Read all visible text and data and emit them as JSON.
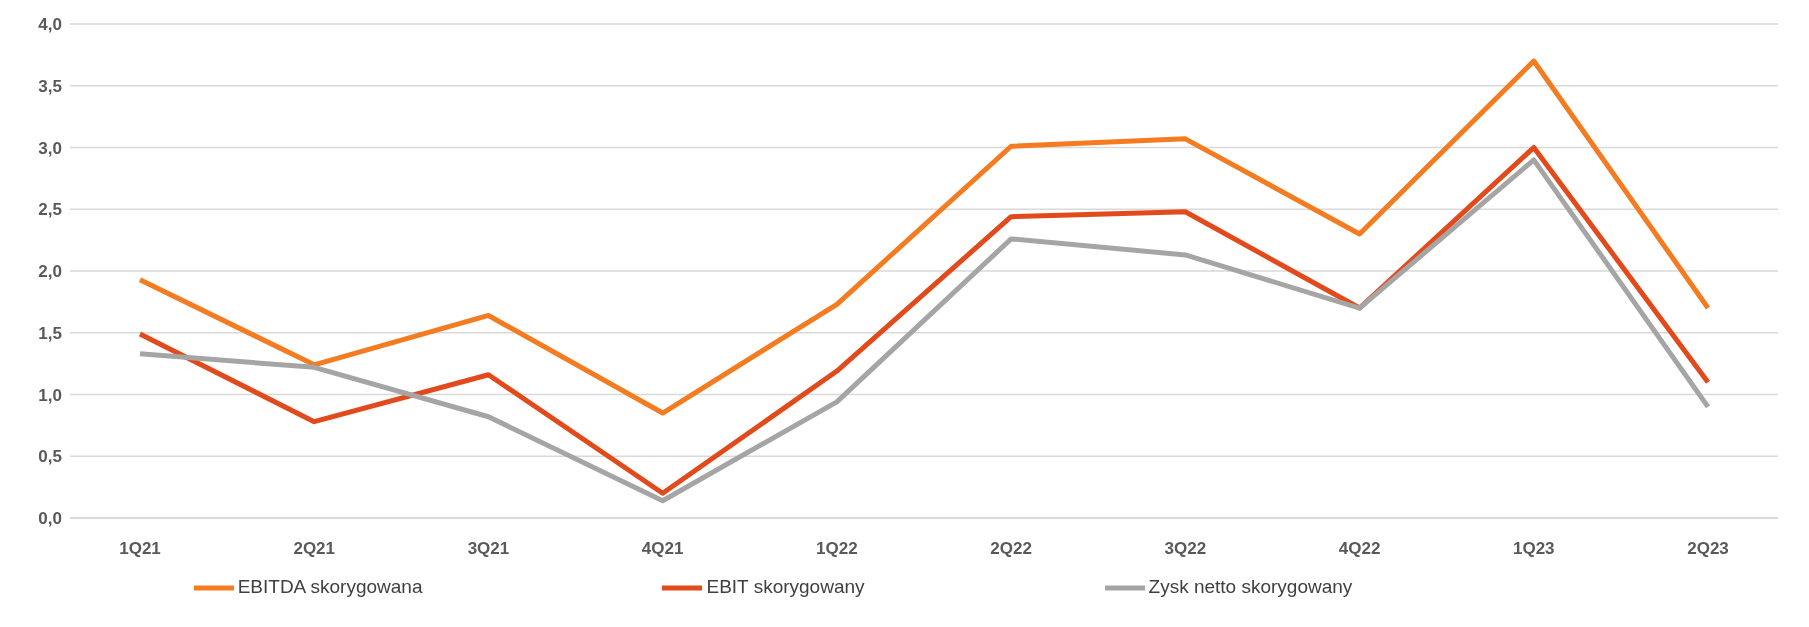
{
  "chart_data": {
    "type": "line",
    "categories": [
      "1Q21",
      "2Q21",
      "3Q21",
      "4Q21",
      "1Q22",
      "2Q22",
      "3Q22",
      "4Q22",
      "1Q23",
      "2Q23"
    ],
    "series": [
      {
        "name": "EBITDA skorygowana",
        "color": "#f47b20",
        "values": [
          1.93,
          1.24,
          1.64,
          0.85,
          1.73,
          3.01,
          3.07,
          2.3,
          3.7,
          1.7
        ]
      },
      {
        "name": "EBIT skorygowany",
        "color": "#e2491b",
        "values": [
          1.49,
          0.78,
          1.16,
          0.2,
          1.19,
          2.44,
          2.48,
          1.7,
          3.0,
          1.1
        ]
      },
      {
        "name": "Zysk netto skorygowany",
        "color": "#a5a5a5",
        "values": [
          1.33,
          1.22,
          0.82,
          0.14,
          0.94,
          2.26,
          2.13,
          1.7,
          2.9,
          0.9
        ]
      }
    ],
    "ylim": [
      0,
      4
    ],
    "yticks": [
      {
        "value": 0,
        "label": "0,0"
      },
      {
        "value": 0.5,
        "label": "0,5"
      },
      {
        "value": 1,
        "label": "1,0"
      },
      {
        "value": 1.5,
        "label": "1,5"
      },
      {
        "value": 2,
        "label": "2,0"
      },
      {
        "value": 2.5,
        "label": "2,5"
      },
      {
        "value": 3,
        "label": "3,0"
      },
      {
        "value": 3.5,
        "label": "3,5"
      },
      {
        "value": 4,
        "label": "4,0"
      }
    ],
    "grid": "y",
    "legend": "bottom",
    "marker": "none",
    "line_style": "solid"
  }
}
